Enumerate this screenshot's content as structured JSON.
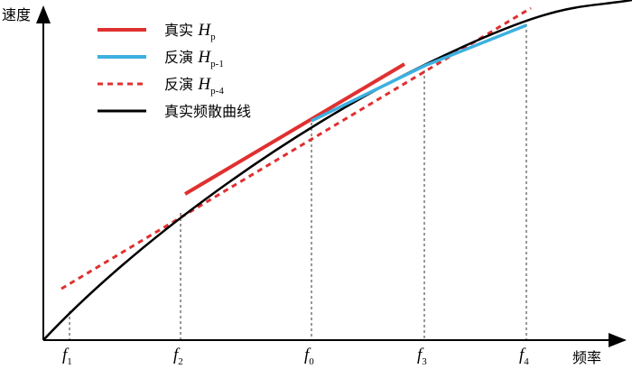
{
  "axes": {
    "y_label": "速度",
    "x_label": "频率"
  },
  "legend": [
    {
      "label": "真实",
      "symbol": "H",
      "subscript": "p"
    },
    {
      "label": "反演",
      "symbol": "H",
      "subscript": "p-1"
    },
    {
      "label": "反演",
      "symbol": "H",
      "subscript": "p-4"
    },
    {
      "label": "真实频散曲线"
    }
  ],
  "ticks": [
    {
      "symbol": "f",
      "subscript": "1"
    },
    {
      "symbol": "f",
      "subscript": "2"
    },
    {
      "symbol": "f",
      "subscript": "0"
    },
    {
      "symbol": "f",
      "subscript": "3"
    },
    {
      "symbol": "f",
      "subscript": "4"
    }
  ]
}
